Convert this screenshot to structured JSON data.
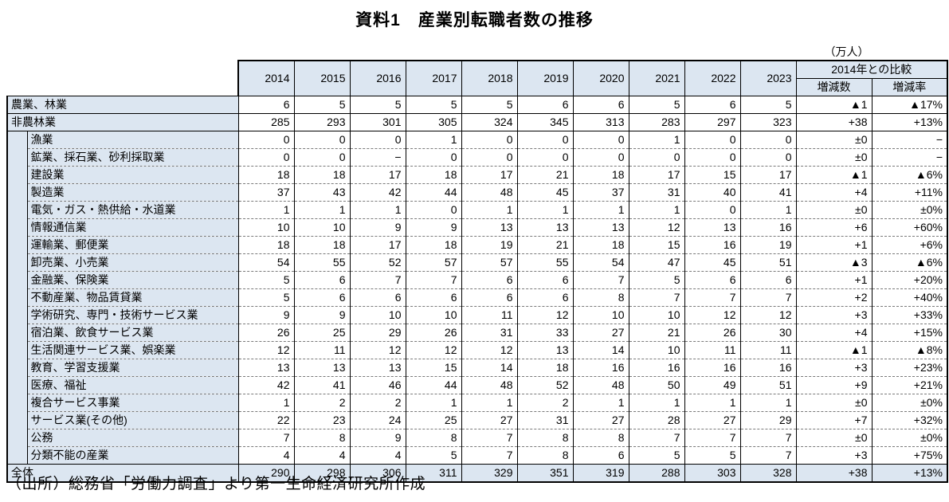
{
  "title": "資料1　産業別転職者数の推移",
  "unit_label": "（万人）",
  "source": "（出所）総務省「労働力調査」より第一生命経済研究所作成",
  "colors": {
    "header_fill": "#dce6f1",
    "border": "#000000"
  },
  "table": {
    "year_headers": [
      "2014",
      "2015",
      "2016",
      "2017",
      "2018",
      "2019",
      "2020",
      "2021",
      "2022",
      "2023"
    ],
    "comparison_header": "2014年との比較",
    "comparison_subheaders": [
      "増減数",
      "増減率"
    ],
    "rows": [
      {
        "label": "農業、林業",
        "level": 0,
        "values": [
          6,
          5,
          5,
          5,
          5,
          6,
          6,
          5,
          6,
          5
        ],
        "diff": "▲1",
        "rate": "▲17%"
      },
      {
        "label": "非農林業",
        "level": 0,
        "values": [
          285,
          293,
          301,
          305,
          324,
          345,
          313,
          283,
          297,
          323
        ],
        "diff": "+38",
        "rate": "+13%"
      },
      {
        "label": "漁業",
        "level": 1,
        "values": [
          0,
          0,
          0,
          1,
          0,
          0,
          0,
          1,
          0,
          0
        ],
        "diff": "±0",
        "rate": "−"
      },
      {
        "label": "鉱業、採石業、砂利採取業",
        "level": 1,
        "values": [
          0,
          0,
          "−",
          0,
          0,
          0,
          0,
          0,
          0,
          0
        ],
        "diff": "±0",
        "rate": "−"
      },
      {
        "label": "建設業",
        "level": 1,
        "values": [
          18,
          18,
          17,
          18,
          17,
          21,
          18,
          17,
          15,
          17
        ],
        "diff": "▲1",
        "rate": "▲6%"
      },
      {
        "label": "製造業",
        "level": 1,
        "values": [
          37,
          43,
          42,
          44,
          48,
          45,
          37,
          31,
          40,
          41
        ],
        "diff": "+4",
        "rate": "+11%"
      },
      {
        "label": "電気・ガス・熱供給・水道業",
        "level": 1,
        "values": [
          1,
          1,
          1,
          0,
          1,
          1,
          1,
          1,
          0,
          1
        ],
        "diff": "±0",
        "rate": "±0%"
      },
      {
        "label": "情報通信業",
        "level": 1,
        "values": [
          10,
          10,
          9,
          9,
          13,
          13,
          13,
          12,
          13,
          16
        ],
        "diff": "+6",
        "rate": "+60%"
      },
      {
        "label": "運輸業、郵便業",
        "level": 1,
        "values": [
          18,
          18,
          17,
          18,
          19,
          21,
          18,
          15,
          16,
          19
        ],
        "diff": "+1",
        "rate": "+6%"
      },
      {
        "label": "卸売業、小売業",
        "level": 1,
        "values": [
          54,
          55,
          52,
          57,
          57,
          55,
          54,
          47,
          45,
          51
        ],
        "diff": "▲3",
        "rate": "▲6%"
      },
      {
        "label": "金融業、保険業",
        "level": 1,
        "values": [
          5,
          6,
          7,
          7,
          6,
          6,
          7,
          5,
          6,
          6
        ],
        "diff": "+1",
        "rate": "+20%"
      },
      {
        "label": "不動産業、物品賃貸業",
        "level": 1,
        "values": [
          5,
          6,
          6,
          6,
          6,
          6,
          8,
          7,
          7,
          7
        ],
        "diff": "+2",
        "rate": "+40%"
      },
      {
        "label": "学術研究、専門・技術サービス業",
        "level": 1,
        "values": [
          9,
          9,
          10,
          10,
          11,
          12,
          10,
          10,
          12,
          12
        ],
        "diff": "+3",
        "rate": "+33%"
      },
      {
        "label": "宿泊業、飲食サービス業",
        "level": 1,
        "values": [
          26,
          25,
          29,
          26,
          31,
          33,
          27,
          21,
          26,
          30
        ],
        "diff": "+4",
        "rate": "+15%"
      },
      {
        "label": "生活関連サービス業、娯楽業",
        "level": 1,
        "values": [
          12,
          11,
          12,
          12,
          12,
          13,
          14,
          10,
          11,
          11
        ],
        "diff": "▲1",
        "rate": "▲8%"
      },
      {
        "label": "教育、学習支援業",
        "level": 1,
        "values": [
          13,
          13,
          13,
          15,
          14,
          18,
          16,
          16,
          16,
          16
        ],
        "diff": "+3",
        "rate": "+23%"
      },
      {
        "label": "医療、福祉",
        "level": 1,
        "values": [
          42,
          41,
          46,
          44,
          48,
          52,
          48,
          50,
          49,
          51
        ],
        "diff": "+9",
        "rate": "+21%"
      },
      {
        "label": "複合サービス事業",
        "level": 1,
        "values": [
          1,
          2,
          2,
          1,
          1,
          2,
          1,
          1,
          1,
          1
        ],
        "diff": "±0",
        "rate": "±0%"
      },
      {
        "label": "サービス業(その他)",
        "level": 1,
        "values": [
          22,
          23,
          24,
          25,
          27,
          31,
          27,
          28,
          27,
          29
        ],
        "diff": "+7",
        "rate": "+32%"
      },
      {
        "label": "公務",
        "level": 1,
        "values": [
          7,
          8,
          9,
          8,
          7,
          8,
          8,
          7,
          7,
          7
        ],
        "diff": "±0",
        "rate": "±0%"
      },
      {
        "label": "分類不能の産業",
        "level": 1,
        "values": [
          4,
          4,
          4,
          5,
          7,
          8,
          6,
          5,
          5,
          7
        ],
        "diff": "+3",
        "rate": "+75%"
      },
      {
        "label": "全体",
        "level": 0,
        "is_total": true,
        "values": [
          290,
          298,
          306,
          311,
          329,
          351,
          319,
          288,
          303,
          328
        ],
        "diff": "+38",
        "rate": "+13%"
      }
    ]
  }
}
